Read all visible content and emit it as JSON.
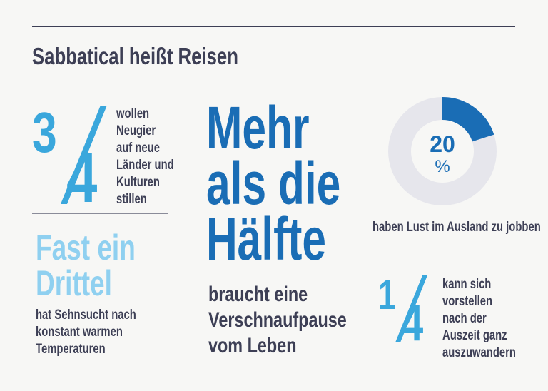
{
  "title": "Sabbatical heißt Reisen",
  "colors": {
    "text": "#3d3f55",
    "light_blue": "#3aa7dc",
    "dark_blue": "#1a6db5",
    "ring_grey": "#e6e6ec",
    "background": "#f7f7f5"
  },
  "stat_three_quarters": {
    "numerator": "3",
    "denominator": "4",
    "lines": [
      "wollen",
      "Neugier",
      "auf neue",
      "Länder und",
      "Kulturen",
      "stillen"
    ]
  },
  "stat_third": {
    "headline": [
      "Fast ein",
      "Drittel"
    ],
    "lines": [
      "hat Sehnsucht nach",
      "konstant warmen",
      "Temperaturen"
    ]
  },
  "stat_half": {
    "headline": [
      "Mehr",
      "als die",
      "Hälfte"
    ],
    "lines": [
      "braucht eine",
      "Verschnaufpause",
      "vom Leben"
    ]
  },
  "stat_twenty": {
    "value": "20",
    "unit": "%",
    "percent": 20,
    "caption": "haben Lust im Ausland zu jobben"
  },
  "stat_quarter": {
    "numerator": "1",
    "denominator": "4",
    "lines": [
      "kann sich",
      "vorstellen",
      "nach der",
      "Auszeit ganz",
      "auszuwandern"
    ]
  }
}
